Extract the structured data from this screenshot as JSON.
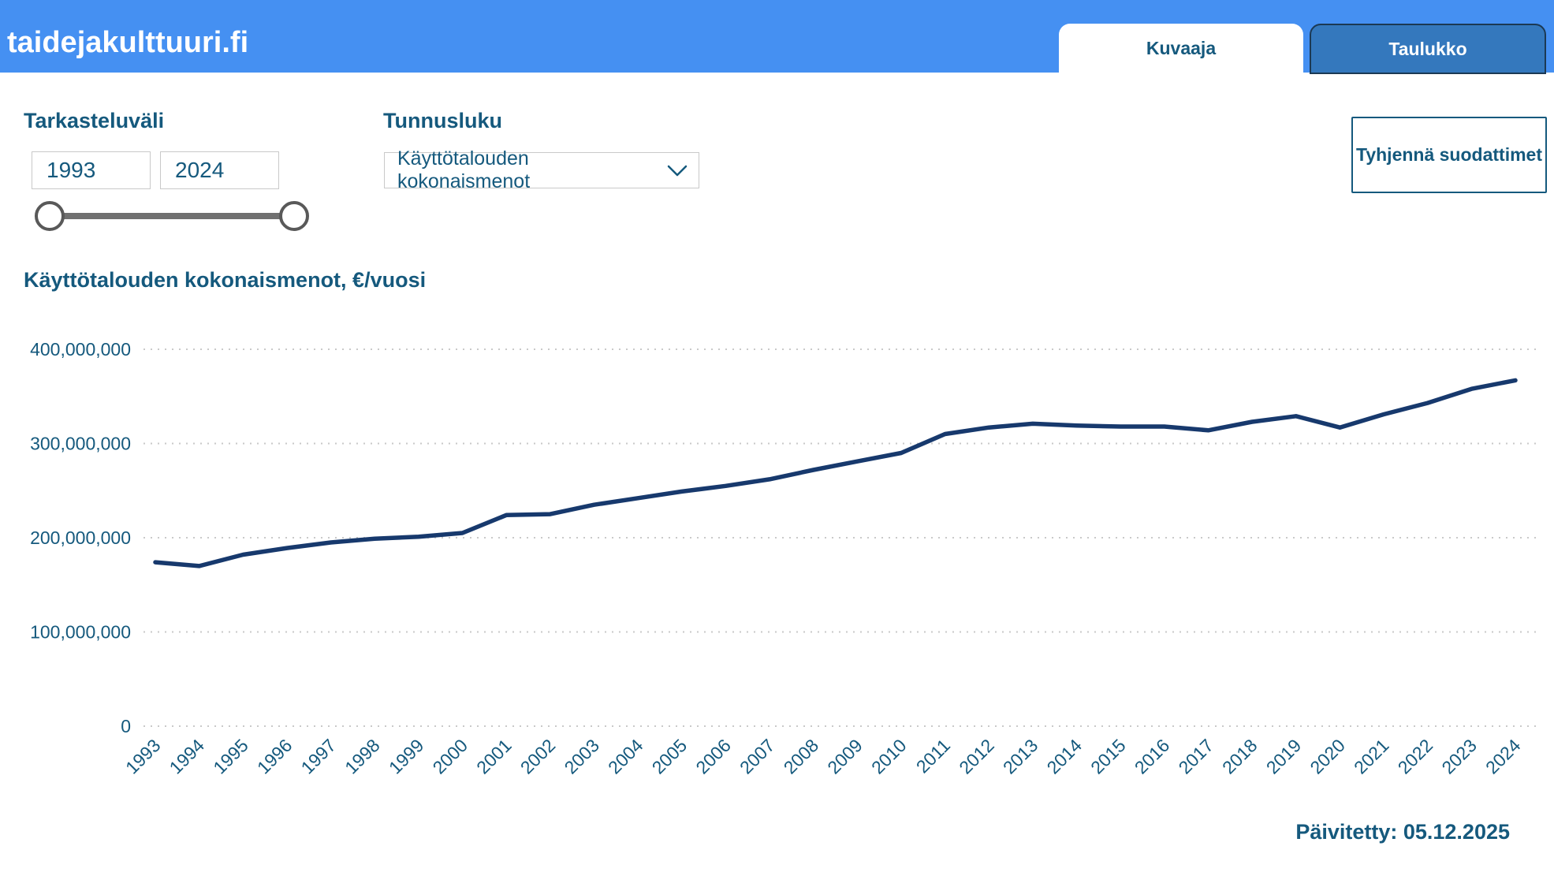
{
  "header": {
    "site_title": "taidejakulttuuri.fi",
    "tabs": [
      {
        "label": "Kuvaaja",
        "active": true
      },
      {
        "label": "Taulukko",
        "active": false
      }
    ]
  },
  "filters": {
    "range_label": "Tarkasteluväli",
    "range_start": "1993",
    "range_end": "2024",
    "indicator_label": "Tunnusluku",
    "indicator_value": "Käyttötalouden kokonaismenot",
    "indicator_icon": "chevron-down",
    "clear_button": "Tyhjennä suodattimet"
  },
  "chart_data": {
    "type": "line",
    "title": "Käyttötalouden kokonaismenot, €/vuosi",
    "xlabel": "",
    "ylabel": "",
    "x": [
      1993,
      1994,
      1995,
      1996,
      1997,
      1998,
      1999,
      2000,
      2001,
      2002,
      2003,
      2004,
      2005,
      2006,
      2007,
      2008,
      2009,
      2010,
      2011,
      2012,
      2013,
      2014,
      2015,
      2016,
      2017,
      2018,
      2019,
      2020,
      2021,
      2022,
      2023,
      2024
    ],
    "values": [
      174000000,
      170000000,
      182000000,
      189000000,
      195000000,
      199000000,
      201000000,
      205000000,
      224000000,
      225000000,
      235000000,
      242000000,
      249000000,
      255000000,
      262000000,
      272000000,
      281000000,
      290000000,
      310000000,
      317000000,
      321000000,
      319000000,
      318000000,
      318000000,
      314000000,
      323000000,
      329000000,
      317000000,
      331000000,
      343000000,
      358000000,
      367000000
    ],
    "ylim": [
      0,
      400000000
    ],
    "yticks": [
      0,
      100000000,
      200000000,
      300000000,
      400000000
    ],
    "ytick_labels": [
      "0",
      "100,000,000",
      "200,000,000",
      "300,000,000",
      "400,000,000"
    ],
    "grid": "horizontal-dotted",
    "legend": "none"
  },
  "footer": {
    "updated": "Päivitetty: 05.12.2025"
  },
  "colors": {
    "header_bg": "#4590f2",
    "tab_active_bg": "#ffffff",
    "tab_inactive_bg": "#3478bd",
    "tab_inactive_border": "#1b3954",
    "accent_text": "#15597d",
    "line": "#17396d",
    "gridline": "#c9c9c9"
  }
}
